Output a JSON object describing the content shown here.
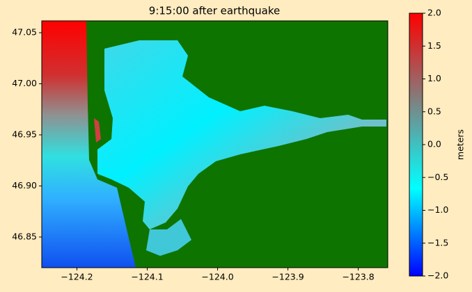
{
  "chart_data": {
    "type": "heatmap",
    "title": "9:15:00 after earthquake",
    "xlim": [
      -124.25,
      -123.758
    ],
    "ylim": [
      46.82,
      47.0616
    ],
    "xticks": [
      {
        "value": -124.2,
        "label": "−124.2"
      },
      {
        "value": -124.1,
        "label": "−124.1"
      },
      {
        "value": -124.0,
        "label": "−124.0"
      },
      {
        "value": -123.9,
        "label": "−123.9"
      },
      {
        "value": -123.8,
        "label": "−123.8"
      }
    ],
    "yticks": [
      {
        "value": 46.85,
        "label": "46.85"
      },
      {
        "value": 46.9,
        "label": "46.90"
      },
      {
        "value": 46.95,
        "label": "46.95"
      },
      {
        "value": 47.0,
        "label": "47.00"
      },
      {
        "value": 47.05,
        "label": "47.05"
      }
    ],
    "colorbar": {
      "label": "meters",
      "clim": [
        -2,
        2
      ],
      "colors": [
        "#0000ff",
        "#0080ff",
        "#00ffff",
        "#40c0c0",
        "#808080",
        "#c04040",
        "#ff0000"
      ],
      "ticks": [
        {
          "value": -2,
          "label": "−2.0"
        },
        {
          "value": -1.5,
          "label": "−1.5"
        },
        {
          "value": -1,
          "label": "−1.0"
        },
        {
          "value": -0.5,
          "label": "−0.5"
        },
        {
          "value": 0,
          "label": "0.0"
        },
        {
          "value": 0.5,
          "label": "0.5"
        },
        {
          "value": 1,
          "label": "1.0"
        },
        {
          "value": 1.5,
          "label": "1.5"
        },
        {
          "value": 2,
          "label": "2.0"
        }
      ]
    }
  }
}
